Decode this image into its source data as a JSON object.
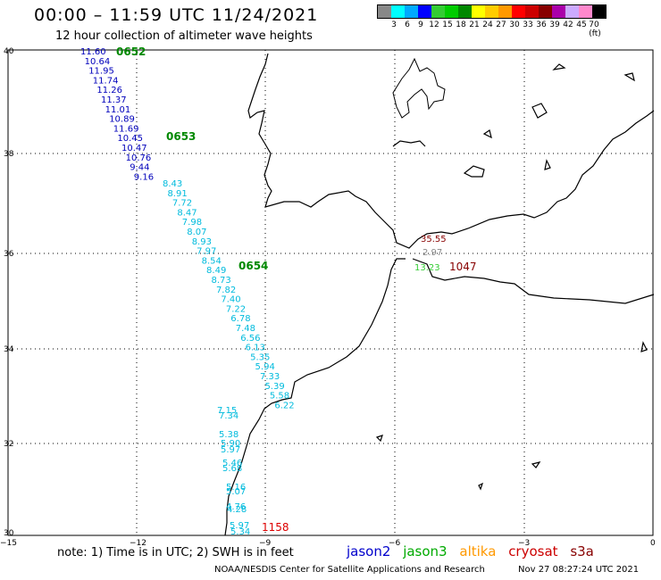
{
  "header": {
    "title": "00:00 – 11:59 UTC 11/24/2021",
    "subtitle": "12 hour collection of altimeter wave heights"
  },
  "scale": {
    "labels": [
      "3",
      "6",
      "9",
      "12",
      "15",
      "18",
      "21",
      "24",
      "27",
      "30",
      "33",
      "36",
      "39",
      "42",
      "45",
      "70 (ft)"
    ],
    "colors": [
      "#888888",
      "#00ffff",
      "#00aaff",
      "#0000ff",
      "#33cc33",
      "#00cc00",
      "#008800",
      "#ffff00",
      "#ffcc00",
      "#ff9900",
      "#ff0000",
      "#cc0000",
      "#880000",
      "#aa00aa",
      "#ccaaff",
      "#ff88cc",
      "#000000"
    ]
  },
  "axes": {
    "lat_labels": [
      "40",
      "38",
      "36",
      "34",
      "32",
      "30"
    ],
    "lon_labels": [
      "−15",
      "−12",
      "−9",
      "−6",
      "−3",
      "0"
    ]
  },
  "track_jason2": {
    "color": "#0000bb",
    "values": [
      "11.60",
      "10.64",
      "11.95",
      "11.74",
      "11.26",
      "11.37",
      "11.01",
      "10.89",
      "11.69",
      "10.45",
      "10.47",
      "10.76",
      "9.44",
      "9.16"
    ]
  },
  "track_cyan": {
    "color": "#00bbdd",
    "values": [
      "8.43",
      "8.91",
      "7.72",
      "8.47",
      "7.98",
      "8.07",
      "8.93",
      "7.97",
      "8.54",
      "8.49",
      "8.73",
      "7.82",
      "7.40",
      "7.22",
      "6.78",
      "7.48",
      "6.56",
      "6.13",
      "5.35",
      "5.94",
      "7.33",
      "5.39",
      "5.58",
      "6.22"
    ]
  },
  "track_coast": {
    "color": "#00bbdd",
    "values": [
      "7.15",
      "7.34",
      "5.38",
      "5.90",
      "5.97",
      "5.46",
      "5.68",
      "5.16",
      "5.07",
      "4.76",
      "4.28",
      "5.97",
      "5.34"
    ]
  },
  "times": [
    "0652",
    "0653",
    "0654"
  ],
  "time_red": "1158",
  "time_maroon": "1047",
  "med": {
    "values": [
      "35.55",
      "2.97",
      "13.23"
    ]
  },
  "note": "note: 1) Time is in UTC; 2) SWH is in feet",
  "legend": [
    {
      "label": "jason2",
      "color": "#0000cc"
    },
    {
      "label": "jason3",
      "color": "#00aa00"
    },
    {
      "label": "altika",
      "color": "#ff9900"
    },
    {
      "label": "cryosat",
      "color": "#cc0000"
    },
    {
      "label": "s3a",
      "color": "#880000"
    }
  ],
  "credit": "NOAA/NESDIS Center for Satellite Applications and Research",
  "timestamp": "Nov 27 08:27:24 UTC 2021"
}
